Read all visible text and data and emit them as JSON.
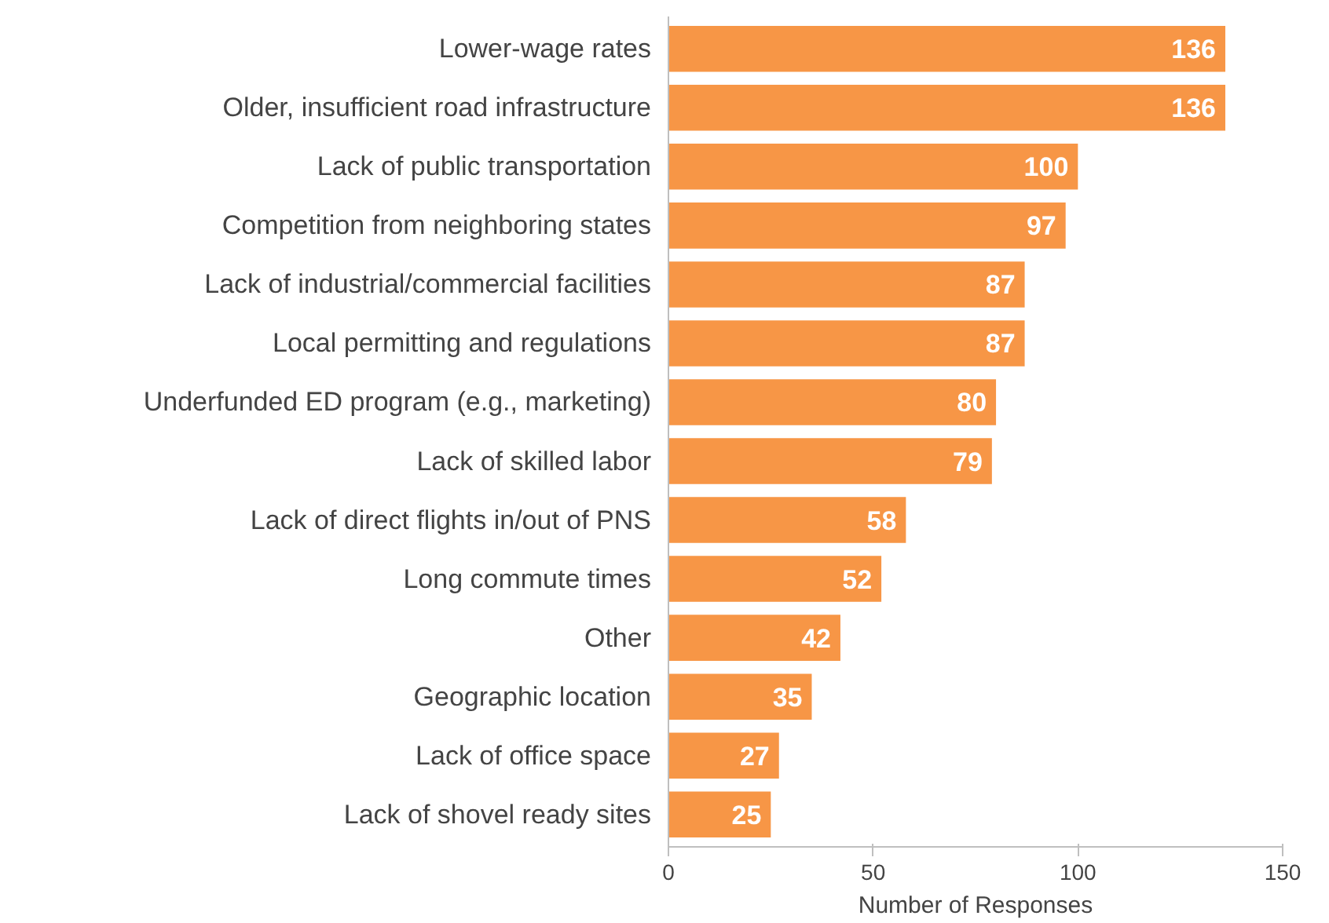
{
  "chart_data": {
    "type": "bar",
    "orientation": "horizontal",
    "xlabel": "Number of Responses",
    "categories": [
      "Lower-wage rates",
      "Older, insufficient road infrastructure",
      "Lack of public transportation",
      "Competition from neighboring states",
      "Lack of industrial/commercial facilities",
      "Local permitting and regulations",
      "Underfunded ED program (e.g., marketing)",
      "Lack of skilled labor",
      "Lack of direct flights in/out of PNS",
      "Long commute times",
      "Other",
      "Geographic location",
      "Lack of office space",
      "Lack of shovel ready sites"
    ],
    "values": [
      136,
      136,
      100,
      97,
      87,
      87,
      80,
      79,
      58,
      52,
      42,
      35,
      27,
      25
    ],
    "color": "#f79646",
    "xlim": [
      0,
      150
    ],
    "xticks": [
      0,
      50,
      100,
      150
    ],
    "data_labels": true
  }
}
